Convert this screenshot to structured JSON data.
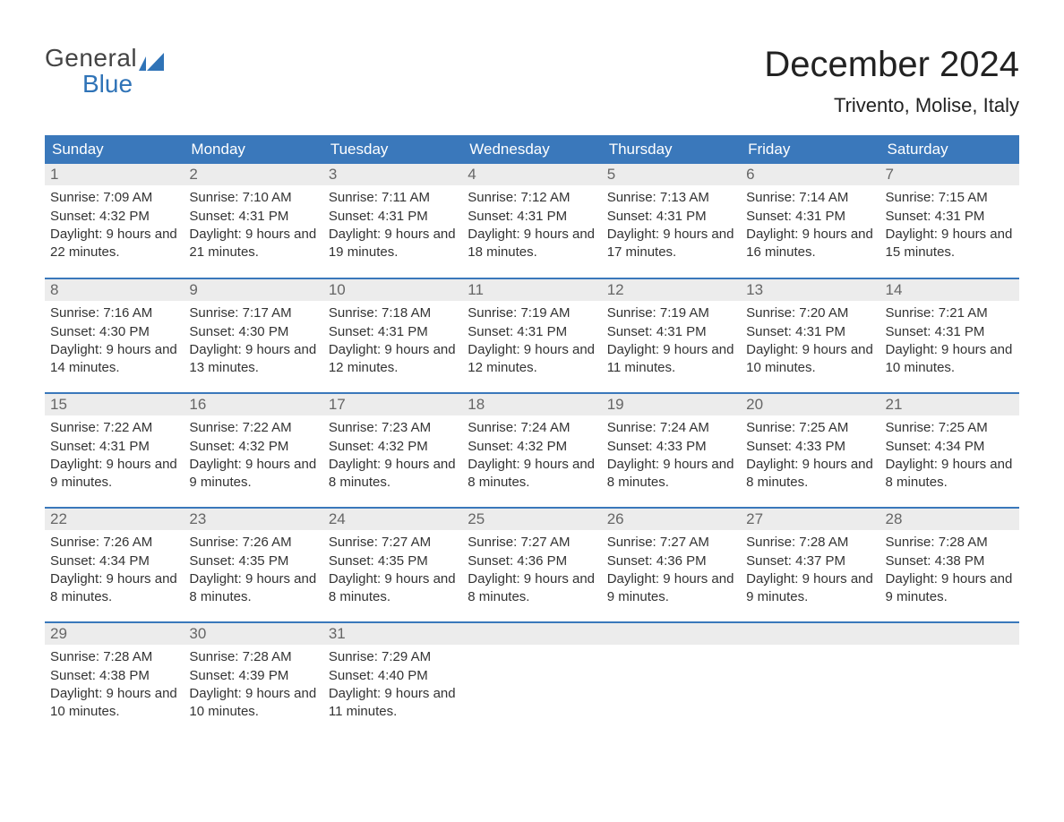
{
  "brand": {
    "word1": "General",
    "word2": "Blue",
    "word1_color": "#444444",
    "word2_color": "#2f73b7",
    "shape_color": "#2f73b7"
  },
  "header": {
    "month_title": "December 2024",
    "location": "Trivento, Molise, Italy",
    "title_color": "#222222",
    "title_fontsize": 40,
    "location_fontsize": 22
  },
  "calendar": {
    "type": "table",
    "header_bg": "#3a78bb",
    "header_text_color": "#ffffff",
    "daynum_bg": "#ececec",
    "daynum_color": "#666666",
    "body_text_color": "#333333",
    "week_border_color": "#3a78bb",
    "columns": [
      "Sunday",
      "Monday",
      "Tuesday",
      "Wednesday",
      "Thursday",
      "Friday",
      "Saturday"
    ],
    "weeks": [
      [
        {
          "day": "1",
          "sunrise": "Sunrise: 7:09 AM",
          "sunset": "Sunset: 4:32 PM",
          "daylight": "Daylight: 9 hours and 22 minutes."
        },
        {
          "day": "2",
          "sunrise": "Sunrise: 7:10 AM",
          "sunset": "Sunset: 4:31 PM",
          "daylight": "Daylight: 9 hours and 21 minutes."
        },
        {
          "day": "3",
          "sunrise": "Sunrise: 7:11 AM",
          "sunset": "Sunset: 4:31 PM",
          "daylight": "Daylight: 9 hours and 19 minutes."
        },
        {
          "day": "4",
          "sunrise": "Sunrise: 7:12 AM",
          "sunset": "Sunset: 4:31 PM",
          "daylight": "Daylight: 9 hours and 18 minutes."
        },
        {
          "day": "5",
          "sunrise": "Sunrise: 7:13 AM",
          "sunset": "Sunset: 4:31 PM",
          "daylight": "Daylight: 9 hours and 17 minutes."
        },
        {
          "day": "6",
          "sunrise": "Sunrise: 7:14 AM",
          "sunset": "Sunset: 4:31 PM",
          "daylight": "Daylight: 9 hours and 16 minutes."
        },
        {
          "day": "7",
          "sunrise": "Sunrise: 7:15 AM",
          "sunset": "Sunset: 4:31 PM",
          "daylight": "Daylight: 9 hours and 15 minutes."
        }
      ],
      [
        {
          "day": "8",
          "sunrise": "Sunrise: 7:16 AM",
          "sunset": "Sunset: 4:30 PM",
          "daylight": "Daylight: 9 hours and 14 minutes."
        },
        {
          "day": "9",
          "sunrise": "Sunrise: 7:17 AM",
          "sunset": "Sunset: 4:30 PM",
          "daylight": "Daylight: 9 hours and 13 minutes."
        },
        {
          "day": "10",
          "sunrise": "Sunrise: 7:18 AM",
          "sunset": "Sunset: 4:31 PM",
          "daylight": "Daylight: 9 hours and 12 minutes."
        },
        {
          "day": "11",
          "sunrise": "Sunrise: 7:19 AM",
          "sunset": "Sunset: 4:31 PM",
          "daylight": "Daylight: 9 hours and 12 minutes."
        },
        {
          "day": "12",
          "sunrise": "Sunrise: 7:19 AM",
          "sunset": "Sunset: 4:31 PM",
          "daylight": "Daylight: 9 hours and 11 minutes."
        },
        {
          "day": "13",
          "sunrise": "Sunrise: 7:20 AM",
          "sunset": "Sunset: 4:31 PM",
          "daylight": "Daylight: 9 hours and 10 minutes."
        },
        {
          "day": "14",
          "sunrise": "Sunrise: 7:21 AM",
          "sunset": "Sunset: 4:31 PM",
          "daylight": "Daylight: 9 hours and 10 minutes."
        }
      ],
      [
        {
          "day": "15",
          "sunrise": "Sunrise: 7:22 AM",
          "sunset": "Sunset: 4:31 PM",
          "daylight": "Daylight: 9 hours and 9 minutes."
        },
        {
          "day": "16",
          "sunrise": "Sunrise: 7:22 AM",
          "sunset": "Sunset: 4:32 PM",
          "daylight": "Daylight: 9 hours and 9 minutes."
        },
        {
          "day": "17",
          "sunrise": "Sunrise: 7:23 AM",
          "sunset": "Sunset: 4:32 PM",
          "daylight": "Daylight: 9 hours and 8 minutes."
        },
        {
          "day": "18",
          "sunrise": "Sunrise: 7:24 AM",
          "sunset": "Sunset: 4:32 PM",
          "daylight": "Daylight: 9 hours and 8 minutes."
        },
        {
          "day": "19",
          "sunrise": "Sunrise: 7:24 AM",
          "sunset": "Sunset: 4:33 PM",
          "daylight": "Daylight: 9 hours and 8 minutes."
        },
        {
          "day": "20",
          "sunrise": "Sunrise: 7:25 AM",
          "sunset": "Sunset: 4:33 PM",
          "daylight": "Daylight: 9 hours and 8 minutes."
        },
        {
          "day": "21",
          "sunrise": "Sunrise: 7:25 AM",
          "sunset": "Sunset: 4:34 PM",
          "daylight": "Daylight: 9 hours and 8 minutes."
        }
      ],
      [
        {
          "day": "22",
          "sunrise": "Sunrise: 7:26 AM",
          "sunset": "Sunset: 4:34 PM",
          "daylight": "Daylight: 9 hours and 8 minutes."
        },
        {
          "day": "23",
          "sunrise": "Sunrise: 7:26 AM",
          "sunset": "Sunset: 4:35 PM",
          "daylight": "Daylight: 9 hours and 8 minutes."
        },
        {
          "day": "24",
          "sunrise": "Sunrise: 7:27 AM",
          "sunset": "Sunset: 4:35 PM",
          "daylight": "Daylight: 9 hours and 8 minutes."
        },
        {
          "day": "25",
          "sunrise": "Sunrise: 7:27 AM",
          "sunset": "Sunset: 4:36 PM",
          "daylight": "Daylight: 9 hours and 8 minutes."
        },
        {
          "day": "26",
          "sunrise": "Sunrise: 7:27 AM",
          "sunset": "Sunset: 4:36 PM",
          "daylight": "Daylight: 9 hours and 9 minutes."
        },
        {
          "day": "27",
          "sunrise": "Sunrise: 7:28 AM",
          "sunset": "Sunset: 4:37 PM",
          "daylight": "Daylight: 9 hours and 9 minutes."
        },
        {
          "day": "28",
          "sunrise": "Sunrise: 7:28 AM",
          "sunset": "Sunset: 4:38 PM",
          "daylight": "Daylight: 9 hours and 9 minutes."
        }
      ],
      [
        {
          "day": "29",
          "sunrise": "Sunrise: 7:28 AM",
          "sunset": "Sunset: 4:38 PM",
          "daylight": "Daylight: 9 hours and 10 minutes."
        },
        {
          "day": "30",
          "sunrise": "Sunrise: 7:28 AM",
          "sunset": "Sunset: 4:39 PM",
          "daylight": "Daylight: 9 hours and 10 minutes."
        },
        {
          "day": "31",
          "sunrise": "Sunrise: 7:29 AM",
          "sunset": "Sunset: 4:40 PM",
          "daylight": "Daylight: 9 hours and 11 minutes."
        },
        null,
        null,
        null,
        null
      ]
    ]
  }
}
